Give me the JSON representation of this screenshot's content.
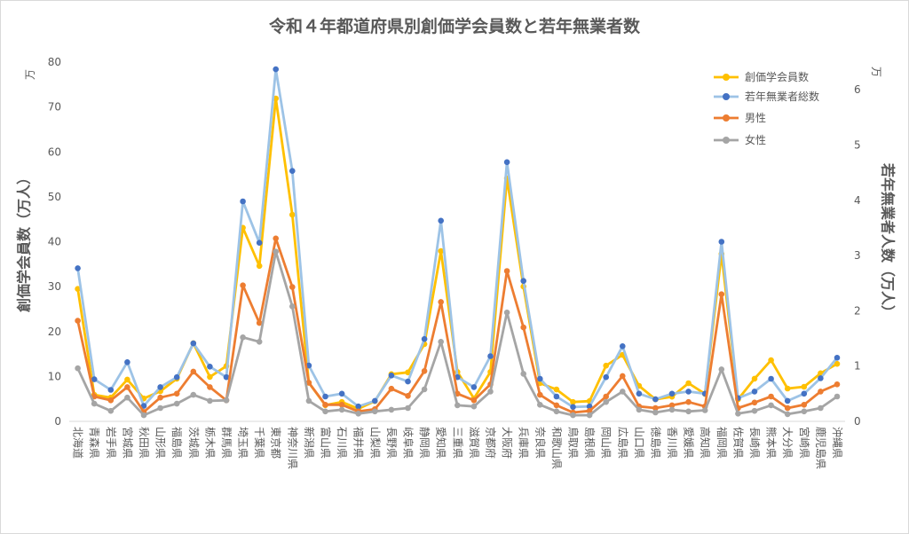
{
  "chart_data": {
    "type": "line",
    "title": "令和４年都道府県別創価学会員数と若年無業者数",
    "grid": false,
    "legend_position": "top-right",
    "categories": [
      "北海道",
      "青森県",
      "岩手県",
      "宮城県",
      "秋田県",
      "山形県",
      "福島県",
      "茨城県",
      "栃木県",
      "群馬県",
      "埼玉県",
      "千葉県",
      "東京都",
      "神奈川県",
      "新潟県",
      "富山県",
      "石川県",
      "福井県",
      "山梨県",
      "長野県",
      "岐阜県",
      "静岡県",
      "愛知県",
      "三重県",
      "滋賀県",
      "京都府",
      "大阪府",
      "兵庫県",
      "奈良県",
      "和歌山県",
      "鳥取県",
      "島根県",
      "岡山県",
      "広島県",
      "山口県",
      "徳島県",
      "香川県",
      "愛媛県",
      "高知県",
      "福岡県",
      "佐賀県",
      "長崎県",
      "熊本県",
      "大分県",
      "宮崎県",
      "鹿児島県",
      "沖縄県"
    ],
    "y_left": {
      "label": "創価学会員数（万人）",
      "unit": "万",
      "ylim": [
        0,
        80
      ],
      "ticks": [
        0,
        10,
        20,
        30,
        40,
        50,
        60,
        70,
        80
      ]
    },
    "y_right": {
      "label": "若年無業者人数（万人）",
      "unit": "万",
      "ylim": [
        0,
        6.5
      ],
      "ticks": [
        0,
        1,
        2,
        3,
        4,
        5,
        6
      ]
    },
    "series": [
      {
        "name": "創価学会員数",
        "axis": "left",
        "color": "#FFC000",
        "marker_color": "#FFC000",
        "values": [
          29.5,
          5.9,
          5.3,
          9.3,
          5.1,
          6.7,
          9.5,
          17.4,
          9.9,
          12.3,
          43.1,
          34.6,
          71.9,
          46.0,
          8.6,
          3.6,
          4.3,
          2.8,
          4.5,
          10.5,
          10.9,
          17.2,
          37.9,
          11.0,
          5.1,
          11.0,
          54.1,
          30.0,
          8.5,
          7.1,
          4.3,
          4.5,
          12.4,
          14.8,
          7.9,
          4.9,
          5.5,
          8.5,
          6.1,
          37.3,
          4.9,
          9.5,
          13.6,
          7.3,
          7.7,
          10.7,
          12.8
        ]
      },
      {
        "name": "若年無業者総数",
        "axis": "right",
        "color": "#9DC3E6",
        "marker_color": "#4472C4",
        "values": [
          2.77,
          0.76,
          0.57,
          1.07,
          0.28,
          0.62,
          0.8,
          1.41,
          0.99,
          0.8,
          3.98,
          3.23,
          6.37,
          4.53,
          1.01,
          0.45,
          0.5,
          0.27,
          0.37,
          0.83,
          0.72,
          1.49,
          3.63,
          0.8,
          0.62,
          1.18,
          4.69,
          2.54,
          0.77,
          0.45,
          0.26,
          0.27,
          0.8,
          1.36,
          0.5,
          0.4,
          0.5,
          0.54,
          0.5,
          3.25,
          0.42,
          0.54,
          0.77,
          0.37,
          0.5,
          0.78,
          1.15
        ]
      },
      {
        "name": "男性",
        "axis": "right",
        "color": "#ED7D31",
        "marker_color": "#ED7D31",
        "values": [
          1.82,
          0.45,
          0.38,
          0.62,
          0.17,
          0.43,
          0.5,
          0.9,
          0.62,
          0.38,
          2.46,
          1.78,
          3.31,
          2.43,
          0.7,
          0.3,
          0.3,
          0.18,
          0.22,
          0.59,
          0.46,
          0.91,
          2.16,
          0.5,
          0.38,
          0.67,
          2.72,
          1.7,
          0.48,
          0.29,
          0.16,
          0.19,
          0.45,
          0.82,
          0.27,
          0.24,
          0.29,
          0.35,
          0.27,
          2.3,
          0.24,
          0.34,
          0.45,
          0.24,
          0.3,
          0.54,
          0.67
        ]
      },
      {
        "name": "女性",
        "axis": "right",
        "color": "#A5A5A5",
        "marker_color": "#A5A5A5",
        "values": [
          0.96,
          0.32,
          0.19,
          0.43,
          0.11,
          0.24,
          0.32,
          0.48,
          0.37,
          0.38,
          1.52,
          1.44,
          3.07,
          2.08,
          0.37,
          0.18,
          0.21,
          0.14,
          0.18,
          0.21,
          0.24,
          0.58,
          1.44,
          0.29,
          0.27,
          0.54,
          1.97,
          0.86,
          0.3,
          0.18,
          0.11,
          0.11,
          0.35,
          0.54,
          0.21,
          0.16,
          0.21,
          0.18,
          0.2,
          0.94,
          0.14,
          0.19,
          0.29,
          0.13,
          0.18,
          0.24,
          0.45
        ]
      }
    ]
  }
}
